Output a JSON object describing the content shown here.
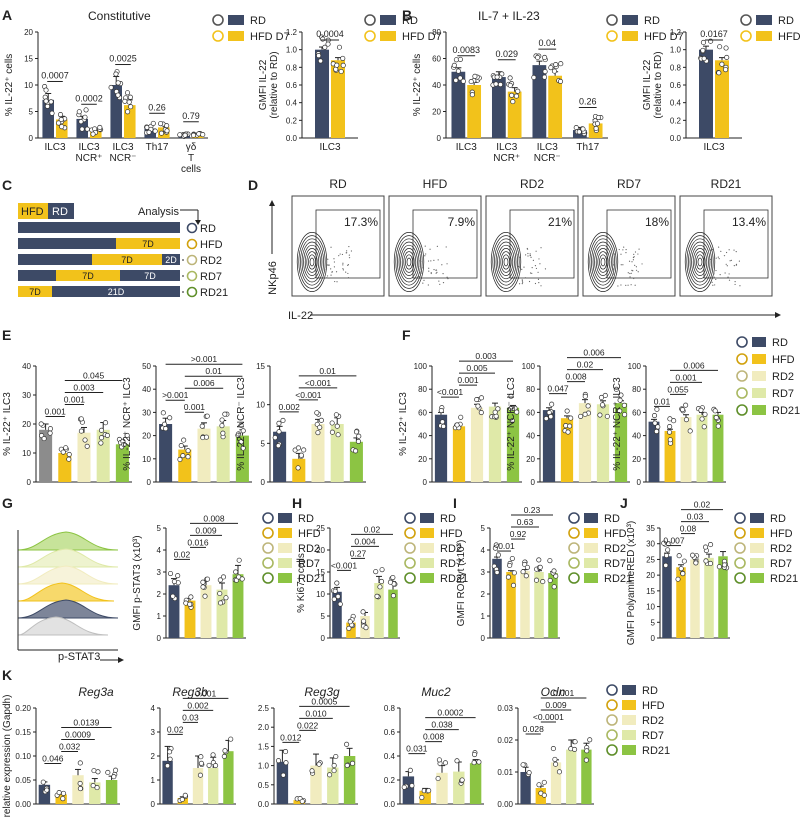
{
  "colors": {
    "RD": "#3d4a66",
    "HFD": "#f2c21b",
    "RD2": "#f1ecbf",
    "RD7": "#dfe9a8",
    "RD21": "#8cc443",
    "gray": "#8c8c8c",
    "hfd_bar": "#f2c21b",
    "rd_bar": "#3d4a66",
    "pt_stroke": "#333333"
  },
  "panel_letters": [
    "A",
    "B",
    "C",
    "D",
    "E",
    "F",
    "G",
    "H",
    "I",
    "J",
    "K"
  ],
  "legends": {
    "two": [
      "RD",
      "HFD D7"
    ],
    "five": [
      "RD",
      "HFD",
      "RD2",
      "RD7",
      "RD21"
    ]
  },
  "panelA": {
    "title": "Constitutive",
    "gmfi_ylabel_line1": "GMFI IL-22",
    "gmfi_ylabel_line2": "(relative to RD)"
  },
  "panelB": {
    "title": "IL-7 + IL-23"
  },
  "panelC": {
    "legend_hfd": "HFD",
    "legend_rd": "RD",
    "analysis_label": "Analysis",
    "rows": [
      {
        "label": "RD"
      },
      {
        "label": "HFD",
        "seg_hfd": "7D"
      },
      {
        "label": "RD2",
        "seg_hfd": "7D",
        "seg_rd": "2D"
      },
      {
        "label": "RD7",
        "seg_hfd": "7D",
        "seg_rd": "7D"
      },
      {
        "label": "RD21",
        "seg_hfd": "7D",
        "seg_rd": "21D"
      }
    ]
  },
  "panelD": {
    "groups": [
      "RD",
      "HFD",
      "RD2",
      "RD7",
      "RD21"
    ],
    "gate_percent": [
      "17.3%",
      "7.9%",
      "21%",
      "18%",
      "13.4%"
    ],
    "y_label": "NKp46",
    "x_label": "IL-22"
  },
  "panelG": {
    "x_label": "p-STAT3"
  },
  "chart_data": [
    {
      "id": "A1",
      "type": "bar",
      "ylabel": "% IL-22⁺ cells",
      "ylim": [
        0,
        20
      ],
      "yticks": [
        0,
        5,
        10,
        15,
        20
      ],
      "categories": [
        "ILC3",
        "ILC3 NCR⁺",
        "ILC3 NCR⁻",
        "Th17",
        "γδ T cells"
      ],
      "series": [
        {
          "name": "RD",
          "values": [
            7.2,
            3.6,
            10.0,
            1.8,
            0.5
          ]
        },
        {
          "name": "HFD D7",
          "values": [
            3.5,
            1.4,
            6.2,
            2.0,
            0.6
          ]
        }
      ],
      "errors": [
        [
          1.2,
          0.5,
          1.6,
          0.5,
          0.2
        ],
        [
          0.6,
          0.3,
          1.0,
          0.4,
          0.2
        ]
      ],
      "pvalues": [
        "0.0007",
        "0.0002",
        "0.0025",
        "0.26",
        "0.79"
      ]
    },
    {
      "id": "A2",
      "type": "bar",
      "ylabel": "GMFI IL-22 (relative to RD)",
      "ylim": [
        0,
        1.2
      ],
      "yticks": [
        0.0,
        0.2,
        0.4,
        0.6,
        0.8,
        1.0,
        1.2
      ],
      "categories": [
        "ILC3"
      ],
      "series": [
        {
          "name": "RD",
          "values": [
            1.0
          ]
        },
        {
          "name": "HFD D7",
          "values": [
            0.88
          ]
        }
      ],
      "errors": [
        [
          0.03
        ],
        [
          0.03
        ]
      ],
      "pvalues": [
        "0.0004"
      ]
    },
    {
      "id": "B1",
      "type": "bar",
      "ylabel": "% IL-22⁺ cells",
      "ylim": [
        0,
        80
      ],
      "yticks": [
        0,
        20,
        40,
        60,
        80
      ],
      "categories": [
        "ILC3",
        "ILC3 NCR⁺",
        "ILC3 NCR⁻",
        "Th17"
      ],
      "series": [
        {
          "name": "RD",
          "values": [
            50,
            46,
            55,
            6
          ]
        },
        {
          "name": "HFD D7",
          "values": [
            40,
            35,
            47,
            11
          ]
        }
      ],
      "errors": [
        [
          3,
          4,
          3,
          2
        ],
        [
          2,
          3,
          3,
          3
        ]
      ],
      "pvalues": [
        "0.0083",
        "0.029",
        "0.04",
        "0.26"
      ]
    },
    {
      "id": "B2",
      "type": "bar",
      "ylabel": "GMFI IL-22 (relative to RD)",
      "ylim": [
        0,
        1.2
      ],
      "yticks": [
        0.0,
        0.2,
        0.4,
        0.6,
        0.8,
        1.0,
        1.2
      ],
      "categories": [
        "ILC3"
      ],
      "series": [
        {
          "name": "RD",
          "values": [
            1.0
          ]
        },
        {
          "name": "HFD D7",
          "values": [
            0.88
          ]
        }
      ],
      "errors": [
        [
          0.04
        ],
        [
          0.03
        ]
      ],
      "pvalues": [
        "0.0167"
      ]
    },
    {
      "id": "E1",
      "type": "bar",
      "ylabel": "% IL-22⁺ ILC3",
      "ylim": [
        0,
        40
      ],
      "yticks": [
        0,
        10,
        20,
        30,
        40
      ],
      "categories": [
        "RD",
        "HFD",
        "RD2",
        "RD7",
        "RD21"
      ],
      "values": [
        18,
        10,
        17,
        18,
        13
      ],
      "errors": [
        2,
        1.2,
        1.8,
        2.5,
        1.2
      ],
      "brackets": [
        [
          "0.001",
          0,
          1,
          0
        ],
        [
          "0.001",
          1,
          2,
          1
        ],
        [
          "0.003",
          1,
          3,
          2
        ],
        [
          "0.045",
          1,
          4,
          3
        ]
      ]
    },
    {
      "id": "E2",
      "type": "bar",
      "ylabel": "% IL-22⁺ NCR⁺ ILC3",
      "ylim": [
        0,
        50
      ],
      "yticks": [
        0,
        10,
        20,
        30,
        40,
        50
      ],
      "categories": [
        "RD",
        "HFD",
        "RD2",
        "RD7",
        "RD21"
      ],
      "values": [
        25,
        14,
        23,
        24,
        20
      ],
      "errors": [
        2.5,
        1.5,
        2.5,
        2.5,
        2.5
      ],
      "brackets": [
        [
          "0.001",
          1,
          2,
          0
        ],
        [
          ">0.001",
          0,
          1,
          1
        ],
        [
          "0.006",
          1,
          3,
          2
        ],
        [
          "0.01",
          1,
          4,
          3
        ],
        [
          ">0.001",
          0,
          4,
          4
        ]
      ]
    },
    {
      "id": "E3",
      "type": "bar",
      "ylabel": "% IL-22⁺ NCR⁻ ILC3",
      "ylim": [
        0,
        15
      ],
      "yticks": [
        0,
        5,
        10,
        15
      ],
      "categories": [
        "RD",
        "HFD",
        "RD2",
        "RD7",
        "RD21"
      ],
      "values": [
        6.5,
        3.0,
        7.5,
        7.5,
        5.2
      ],
      "errors": [
        0.7,
        0.7,
        0.6,
        0.8,
        0.5
      ],
      "brackets": [
        [
          "0.002",
          0,
          1,
          0
        ],
        [
          "<0.001",
          1,
          2,
          1
        ],
        [
          "<0.001",
          1,
          3,
          2
        ],
        [
          "0.01",
          1,
          4,
          3
        ]
      ]
    },
    {
      "id": "F1",
      "type": "bar",
      "ylabel": "% IL-22⁺ ILC3",
      "ylim": [
        0,
        100
      ],
      "yticks": [
        0,
        20,
        40,
        60,
        80,
        100
      ],
      "categories": [
        "RD",
        "HFD",
        "RD2",
        "RD7",
        "RD21"
      ],
      "values": [
        58,
        48,
        64,
        65,
        64
      ],
      "errors": [
        2,
        1.5,
        3,
        3,
        2
      ],
      "brackets": [
        [
          "<0.001",
          0,
          1,
          0
        ],
        [
          "0.001",
          1,
          2,
          1
        ],
        [
          "0.005",
          1,
          3,
          2
        ],
        [
          "0.003",
          1,
          4,
          3
        ]
      ]
    },
    {
      "id": "F2",
      "type": "bar",
      "ylabel": "% IL-22⁺ NCR⁻ ILC3",
      "ylim": [
        0,
        100
      ],
      "yticks": [
        0,
        20,
        40,
        60,
        80,
        100
      ],
      "categories": [
        "RD",
        "HFD",
        "RD2",
        "RD7",
        "RD21"
      ],
      "values": [
        62,
        55,
        68,
        67,
        68
      ],
      "errors": [
        2,
        2,
        3,
        3,
        2
      ],
      "brackets": [
        [
          "0.047",
          0,
          1,
          0
        ],
        [
          "0.008",
          1,
          2,
          1
        ],
        [
          "0.02",
          1,
          3,
          2
        ],
        [
          "0.006",
          1,
          4,
          3
        ]
      ]
    },
    {
      "id": "F3",
      "type": "bar",
      "ylabel": "% IL-22⁺ NCR⁺ ILC3",
      "ylim": [
        0,
        100
      ],
      "yticks": [
        0,
        20,
        40,
        60,
        80,
        100
      ],
      "categories": [
        "RD",
        "HFD",
        "RD2",
        "RD7",
        "RD21"
      ],
      "values": [
        52,
        44,
        56,
        58,
        58
      ],
      "errors": [
        2,
        1.5,
        2,
        2,
        2
      ],
      "brackets": [
        [
          "0.01",
          0,
          1,
          0
        ],
        [
          "0.055",
          1,
          2,
          1
        ],
        [
          "0.001",
          1,
          3,
          2
        ],
        [
          "0.006",
          1,
          4,
          3
        ]
      ]
    },
    {
      "id": "G",
      "type": "bar",
      "ylabel": "GMFI p-STAT3 (x10³)",
      "ylim": [
        0,
        5
      ],
      "yticks": [
        0,
        1,
        2,
        3,
        4,
        5
      ],
      "categories": [
        "RD",
        "HFD",
        "RD2",
        "RD7",
        "RD21"
      ],
      "values": [
        2.4,
        1.7,
        2.4,
        2.2,
        2.9
      ],
      "errors": [
        0.3,
        0.1,
        0.2,
        0.3,
        0.4
      ],
      "brackets": [
        [
          "0.02",
          0,
          1,
          0
        ],
        [
          "0.016",
          1,
          2,
          1
        ],
        [
          "0.009",
          1,
          3,
          2
        ],
        [
          "0.008",
          1,
          4,
          3
        ]
      ]
    },
    {
      "id": "H",
      "type": "bar",
      "ylabel": "% Ki67⁺ cells",
      "ylim": [
        0,
        25
      ],
      "yticks": [
        0,
        5,
        10,
        15,
        20,
        25
      ],
      "categories": [
        "RD",
        "HFD",
        "RD2",
        "RD7",
        "RD21"
      ],
      "values": [
        10.5,
        3.5,
        5,
        12.5,
        11
      ],
      "errors": [
        1,
        0.6,
        0.8,
        1.5,
        1.8
      ],
      "brackets": [
        [
          "<0.001",
          0,
          1,
          0
        ],
        [
          "0.27",
          1,
          2,
          1
        ],
        [
          "0.004",
          1,
          3,
          2
        ],
        [
          "0.02",
          1,
          4,
          3
        ]
      ]
    },
    {
      "id": "I",
      "type": "bar",
      "ylabel": "GMFI RORγt (x10³)",
      "ylim": [
        0,
        5
      ],
      "yticks": [
        0,
        1,
        2,
        3,
        4,
        5
      ],
      "categories": [
        "RD",
        "HFD",
        "RD2",
        "RD7",
        "RD21"
      ],
      "values": [
        3.6,
        3.0,
        3.05,
        3.0,
        2.95
      ],
      "errors": [
        0.08,
        0.06,
        0.06,
        0.06,
        0.06
      ],
      "brackets": [
        [
          "<0.01",
          0,
          1,
          0
        ],
        [
          "0.92",
          1,
          2,
          1
        ],
        [
          "0.63",
          1,
          3,
          2
        ],
        [
          "0.23",
          1,
          4,
          3
        ]
      ]
    },
    {
      "id": "J",
      "type": "bar",
      "ylabel": "GMFI PolyamineRED (x10³)",
      "ylim": [
        0,
        35
      ],
      "yticks": [
        0,
        5,
        10,
        15,
        20,
        25,
        30,
        35
      ],
      "categories": [
        "RD",
        "HFD",
        "RD2",
        "RD7",
        "RD21"
      ],
      "values": [
        26,
        22.5,
        25,
        25.5,
        26
      ],
      "errors": [
        1,
        0.8,
        1.2,
        1.2,
        1.5
      ],
      "brackets": [
        [
          "0.007",
          0,
          1,
          0
        ],
        [
          "0.08",
          1,
          2,
          1
        ],
        [
          "0.03",
          1,
          3,
          2
        ],
        [
          "0.02",
          1,
          4,
          3
        ]
      ]
    },
    {
      "id": "K1",
      "title": "Reg3a",
      "type": "bar",
      "ylabel": "relative expression (Gapdh)",
      "ylim": [
        0,
        0.2
      ],
      "yticks": [
        0.0,
        0.05,
        0.1,
        0.15,
        0.2
      ],
      "categories": [
        "RD",
        "HFD",
        "RD2",
        "RD7",
        "RD21"
      ],
      "values": [
        0.04,
        0.02,
        0.06,
        0.045,
        0.05
      ],
      "errors": [
        0.006,
        0.003,
        0.012,
        0.008,
        0.008
      ],
      "brackets": [
        [
          "0.046",
          0,
          1,
          0
        ],
        [
          "0.032",
          1,
          2,
          1
        ],
        [
          "0.0009",
          1,
          3,
          2
        ],
        [
          "0.0139",
          1,
          4,
          3
        ]
      ]
    },
    {
      "id": "K2",
      "title": "Reg3b",
      "type": "bar",
      "ylabel": "",
      "ylim": [
        0,
        4
      ],
      "yticks": [
        0,
        1,
        2,
        3,
        4
      ],
      "categories": [
        "RD",
        "HFD",
        "RD2",
        "RD7",
        "RD21"
      ],
      "values": [
        1.8,
        0.25,
        1.5,
        1.5,
        2.2
      ],
      "errors": [
        0.6,
        0.05,
        0.5,
        0.45,
        0.45
      ],
      "brackets": [
        [
          "0.02",
          0,
          1,
          0
        ],
        [
          "0.03",
          1,
          2,
          1
        ],
        [
          "0.002",
          1,
          3,
          2
        ],
        [
          "0.001",
          1,
          4,
          3
        ]
      ]
    },
    {
      "id": "K3",
      "title": "Reg3g",
      "type": "bar",
      "ylabel": "",
      "ylim": [
        0,
        2.5
      ],
      "yticks": [
        0.0,
        0.5,
        1.0,
        1.5,
        2.0,
        2.5
      ],
      "categories": [
        "RD",
        "HFD",
        "RD2",
        "RD7",
        "RD21"
      ],
      "values": [
        1.1,
        0.1,
        1.0,
        0.95,
        1.25
      ],
      "errors": [
        0.3,
        0.03,
        0.3,
        0.25,
        0.2
      ],
      "brackets": [
        [
          "0.012",
          0,
          1,
          0
        ],
        [
          "0.022",
          1,
          2,
          1
        ],
        [
          "0.010",
          1,
          3,
          2
        ],
        [
          "0.0005",
          1,
          4,
          3
        ]
      ]
    },
    {
      "id": "K4",
      "title": "Muc2",
      "type": "bar",
      "ylabel": "",
      "ylim": [
        0,
        0.8
      ],
      "yticks": [
        0.0,
        0.2,
        0.4,
        0.6,
        0.8
      ],
      "categories": [
        "RD",
        "HFD",
        "RD2",
        "RD7",
        "RD21"
      ],
      "values": [
        0.23,
        0.11,
        0.26,
        0.27,
        0.34
      ],
      "errors": [
        0.04,
        0.02,
        0.06,
        0.08,
        0.03
      ],
      "brackets": [
        [
          "0.031",
          0,
          1,
          0
        ],
        [
          "0.008",
          1,
          2,
          1
        ],
        [
          "0.038",
          1,
          3,
          2
        ],
        [
          "0.0002",
          1,
          4,
          3
        ]
      ]
    },
    {
      "id": "K5",
      "title": "Ocln",
      "type": "bar",
      "ylabel": "",
      "ylim": [
        0,
        0.03
      ],
      "yticks": [
        0.0,
        0.01,
        0.02,
        0.03
      ],
      "categories": [
        "RD",
        "HFD",
        "RD2",
        "RD7",
        "RD21"
      ],
      "values": [
        0.01,
        0.005,
        0.013,
        0.017,
        0.017
      ],
      "errors": [
        0.0015,
        0.0006,
        0.0008,
        0.003,
        0.002
      ],
      "brackets": [
        [
          "0.028",
          0,
          1,
          0
        ],
        [
          "<0.0001",
          1,
          2,
          1
        ],
        [
          "0.009",
          1,
          3,
          2
        ],
        [
          "0.001",
          1,
          4,
          3
        ]
      ]
    }
  ]
}
